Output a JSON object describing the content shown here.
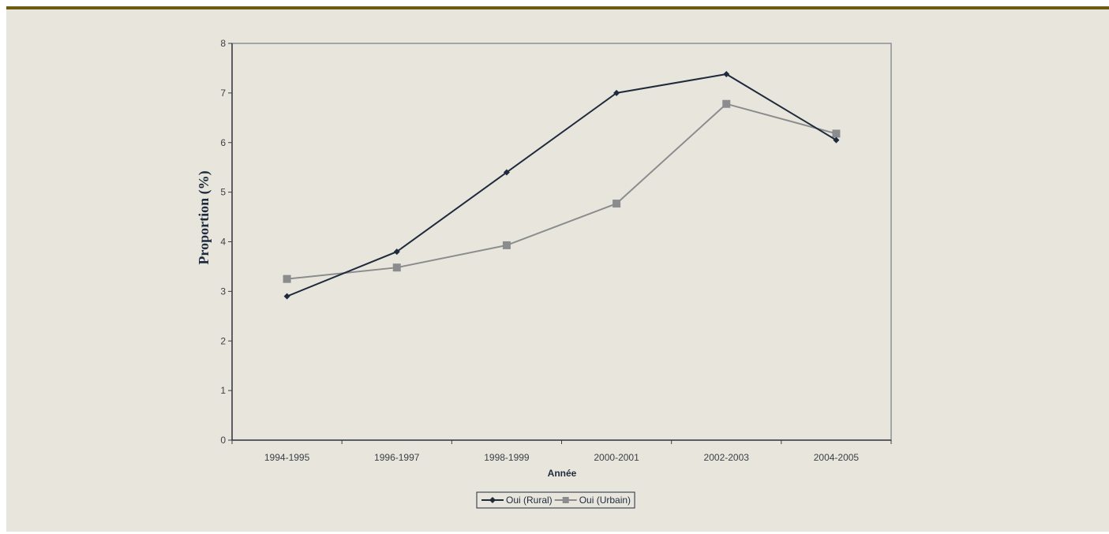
{
  "chart_data": {
    "type": "line",
    "categories": [
      "1994-1995",
      "1996-1997",
      "1998-1999",
      "2000-2001",
      "2002-2003",
      "2004-2005"
    ],
    "series": [
      {
        "name": "Oui (Rural)",
        "values": [
          2.9,
          3.8,
          5.4,
          7.0,
          7.38,
          6.05
        ],
        "color": "#1f2a3d",
        "marker": "diamond"
      },
      {
        "name": "Oui (Urbain)",
        "values": [
          3.25,
          3.48,
          3.93,
          4.77,
          6.78,
          6.18
        ],
        "color": "#8a8c8e",
        "marker": "square"
      }
    ],
    "xlabel": "Année",
    "ylabel": "Proportion (%)",
    "ylim": [
      0,
      8
    ],
    "yticks": [
      "0",
      "1",
      "2",
      "3",
      "4",
      "5",
      "6",
      "7",
      "8"
    ],
    "grid": false,
    "legend": "bottom"
  },
  "colors": {
    "panel_background": "#e8e6dc",
    "top_rule": "#6b5c12",
    "plot_border": "#8a9096",
    "axis": "#3a3f46"
  }
}
